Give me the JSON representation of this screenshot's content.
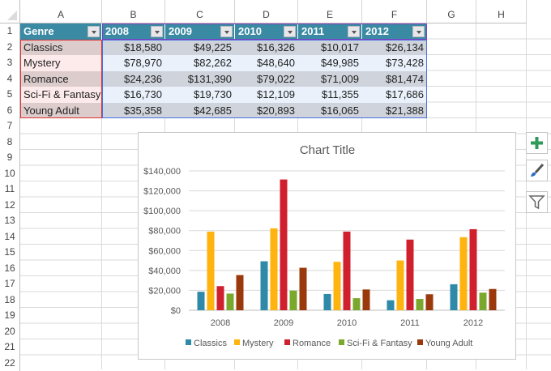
{
  "columns": [
    "A",
    "B",
    "C",
    "D",
    "E",
    "F",
    "G",
    "H"
  ],
  "rows": [
    "1",
    "2",
    "3",
    "4",
    "5",
    "6",
    "7",
    "8",
    "9",
    "10",
    "11",
    "12",
    "13",
    "14",
    "15",
    "16",
    "17",
    "18",
    "19",
    "20",
    "21",
    "22"
  ],
  "table": {
    "headers": [
      "Genre",
      "2008",
      "2009",
      "2010",
      "2011",
      "2012"
    ],
    "rows": [
      [
        "Classics",
        "$18,580",
        "$49,225",
        "$16,326",
        "$10,017",
        "$26,134"
      ],
      [
        "Mystery",
        "$78,970",
        "$82,262",
        "$48,640",
        "$49,985",
        "$73,428"
      ],
      [
        "Romance",
        "$24,236",
        "$131,390",
        "$79,022",
        "$71,009",
        "$81,474"
      ],
      [
        "Sci-Fi & Fantasy",
        "$16,730",
        "$19,730",
        "$12,109",
        "$11,355",
        "$17,686"
      ],
      [
        "Young Adult",
        "$35,358",
        "$42,685",
        "$20,893",
        "$16,065",
        "$21,388"
      ]
    ]
  },
  "chart_data": {
    "type": "bar",
    "title": "Chart Title",
    "categories": [
      "2008",
      "2009",
      "2010",
      "2011",
      "2012"
    ],
    "series": [
      {
        "name": "Classics",
        "color": "#2e8aa8",
        "values": [
          18580,
          49225,
          16326,
          10017,
          26134
        ]
      },
      {
        "name": "Mystery",
        "color": "#ffb30f",
        "values": [
          78970,
          82262,
          48640,
          49985,
          73428
        ]
      },
      {
        "name": "Romance",
        "color": "#d0202e",
        "values": [
          24236,
          131390,
          79022,
          71009,
          81474
        ]
      },
      {
        "name": "Sci-Fi & Fantasy",
        "color": "#7aa82c",
        "values": [
          16730,
          19730,
          12109,
          11355,
          17686
        ]
      },
      {
        "name": "Young Adult",
        "color": "#9a3a0c",
        "values": [
          35358,
          42685,
          20893,
          16065,
          21388
        ]
      }
    ],
    "yticks": [
      "$0",
      "$20,000",
      "$40,000",
      "$60,000",
      "$80,000",
      "$100,000",
      "$120,000",
      "$140,000"
    ],
    "ylim": [
      0,
      140000
    ],
    "grid": true,
    "legend": "bottom"
  },
  "side_buttons": {
    "add": "plus-icon",
    "style": "brush-icon",
    "filter": "filter-icon"
  }
}
